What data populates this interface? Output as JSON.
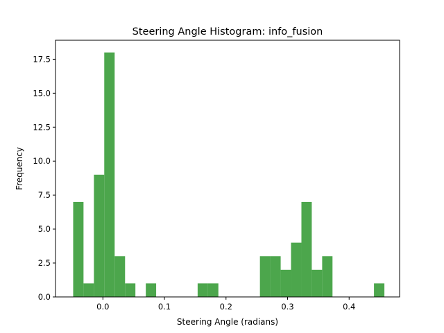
{
  "chart_data": {
    "type": "bar",
    "title": "Steering Angle Histogram: info_fusion",
    "xlabel": "Steering Angle (radians)",
    "ylabel": "Frequency",
    "xlim": [
      -0.077,
      0.482
    ],
    "ylim": [
      0,
      18.9
    ],
    "bar_color": "#4ca64c",
    "grid": false,
    "bins": [
      {
        "x0": -0.0483,
        "x1": -0.0315,
        "count": 7
      },
      {
        "x0": -0.0315,
        "x1": -0.0146,
        "count": 1
      },
      {
        "x0": -0.0146,
        "x1": 0.0022,
        "count": 9
      },
      {
        "x0": 0.0022,
        "x1": 0.0191,
        "count": 18
      },
      {
        "x0": 0.0191,
        "x1": 0.036,
        "count": 3
      },
      {
        "x0": 0.036,
        "x1": 0.0528,
        "count": 1
      },
      {
        "x0": 0.0697,
        "x1": 0.0865,
        "count": 1
      },
      {
        "x0": 0.1539,
        "x1": 0.1708,
        "count": 1
      },
      {
        "x0": 0.1708,
        "x1": 0.1876,
        "count": 1
      },
      {
        "x0": 0.2551,
        "x1": 0.2719,
        "count": 3
      },
      {
        "x0": 0.2719,
        "x1": 0.2888,
        "count": 3
      },
      {
        "x0": 0.2888,
        "x1": 0.3056,
        "count": 2
      },
      {
        "x0": 0.3056,
        "x1": 0.3225,
        "count": 4
      },
      {
        "x0": 0.3225,
        "x1": 0.3393,
        "count": 7
      },
      {
        "x0": 0.3393,
        "x1": 0.3562,
        "count": 2
      },
      {
        "x0": 0.3562,
        "x1": 0.373,
        "count": 3
      },
      {
        "x0": 0.4404,
        "x1": 0.4573,
        "count": 1
      }
    ],
    "xticks": [
      {
        "value": 0.0,
        "label": "0.0"
      },
      {
        "value": 0.1,
        "label": "0.1"
      },
      {
        "value": 0.2,
        "label": "0.2"
      },
      {
        "value": 0.3,
        "label": "0.3"
      },
      {
        "value": 0.4,
        "label": "0.4"
      }
    ],
    "yticks": [
      {
        "value": 0.0,
        "label": "0.0"
      },
      {
        "value": 2.5,
        "label": "2.5"
      },
      {
        "value": 5.0,
        "label": "5.0"
      },
      {
        "value": 7.5,
        "label": "7.5"
      },
      {
        "value": 10.0,
        "label": "10.0"
      },
      {
        "value": 12.5,
        "label": "12.5"
      },
      {
        "value": 15.0,
        "label": "15.0"
      },
      {
        "value": 17.5,
        "label": "17.5"
      }
    ]
  }
}
